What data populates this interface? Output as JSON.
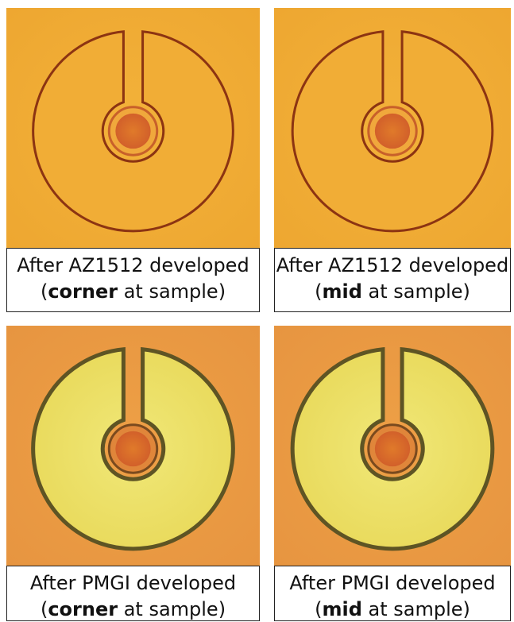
{
  "panels": [
    {
      "line1": "After AZ1512 developed",
      "open": "(",
      "bold": "corner",
      "rest": " at sample)"
    },
    {
      "line1": "After AZ1512 developed",
      "open": "(",
      "bold": "mid",
      "rest": " at sample)"
    },
    {
      "line1": "After PMGI developed",
      "open": "(",
      "bold": "corner",
      "rest": " at sample)"
    },
    {
      "line1": "After PMGI developed",
      "open": "(",
      "bold": "mid",
      "rest": " at sample)"
    }
  ]
}
